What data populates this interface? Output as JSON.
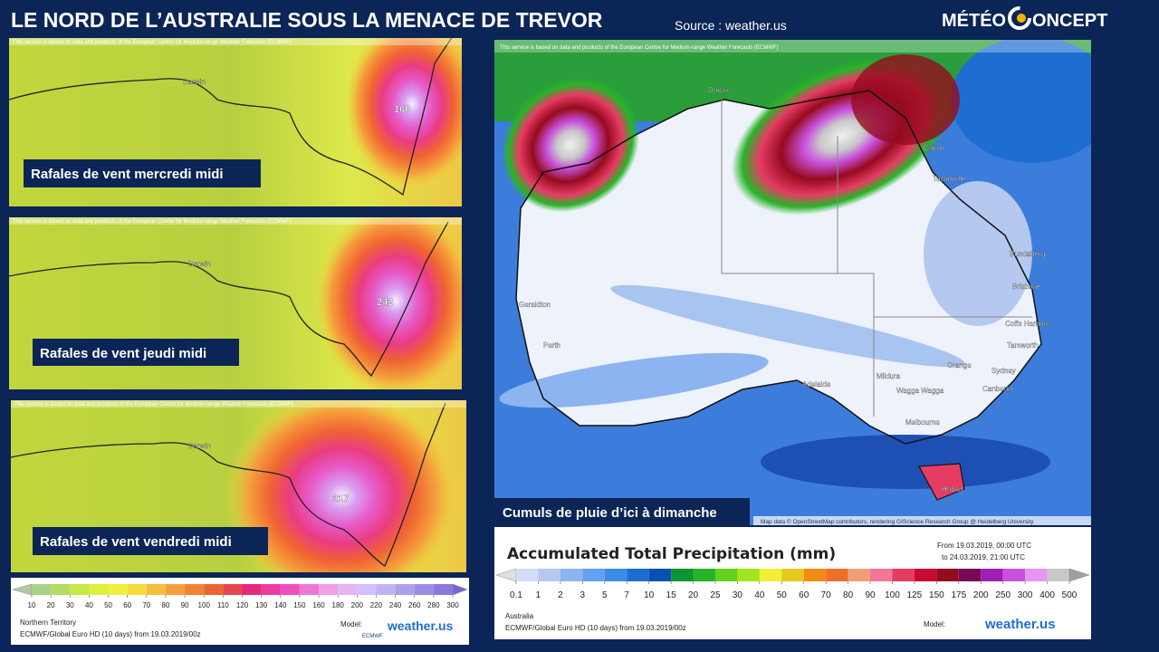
{
  "header": {
    "title": "LE NORD DE L’AUSTRALIE SOUS LA MENACE DE TREVOR",
    "source": "Source : weather.us",
    "logo_left": "MÉTÉO",
    "logo_right": "ONCEPT"
  },
  "wind_maps": [
    {
      "disclaimer": "This service is based on data and products of the European Centre for Medium-range Weather Forecasts (ECMWF)",
      "caption": "Rafales de vent mercredi midi",
      "city": "Darwin",
      "peak": 160
    },
    {
      "disclaimer": "This service is based on data and products of the European Centre for Medium-range Weather Forecasts (ECMWF)",
      "caption": "Rafales de vent jeudi midi",
      "city": "Darwin",
      "peak": 242
    },
    {
      "disclaimer": "This service is based on data and products of the European Centre for Medium-range Weather Forecasts (ECMWF)",
      "caption": "Rafales de vent vendredi midi",
      "city": "Darwin",
      "peak": 317
    }
  ],
  "wind_legend": {
    "labels": [
      10,
      20,
      30,
      40,
      50,
      60,
      70,
      80,
      90,
      100,
      110,
      120,
      130,
      140,
      150,
      160,
      180,
      200,
      220,
      240,
      260,
      280,
      300
    ],
    "colors": [
      "#b4c8a0",
      "#a8d28c",
      "#b4dc64",
      "#c8e646",
      "#dcf03c",
      "#f0f03c",
      "#f5dc3c",
      "#f5be3c",
      "#f5a03c",
      "#f08232",
      "#eb6432",
      "#e64650",
      "#e6287d",
      "#eb3ca0",
      "#f050be",
      "#f078d2",
      "#f0a0e6",
      "#e6b4f0",
      "#d2beff",
      "#beb4f5",
      "#aaa0eb",
      "#9b8ce6",
      "#8c78dc",
      "#7864d2"
    ],
    "region": "Northern Territory",
    "model_run": "ECMWF/Global Euro HD (10 days) from 19.03.2019/00z",
    "model_label": "Model:",
    "ecmwf": "ECMWF",
    "brand": "weather.us"
  },
  "precip_map": {
    "disclaimer": "This service is based on data and products of the European Centre for Medium-range Weather Forecasts (ECMWF)",
    "caption": "Cumuls de pluie d’ici à dimanche",
    "attribution": "Map data © OpenStreetMap contributors, rendering GIScience Research Group @ Heidelberg University",
    "cities": [
      "Darwin",
      "Cairns",
      "Townsville",
      "Bundaberg",
      "Brisbane",
      "Coffs Harbour",
      "Tamworth",
      "Sydney",
      "Orange",
      "Canberra",
      "Wagga Wagga",
      "Mildura",
      "Adelaide",
      "Melbourne",
      "Hobart",
      "Geraldton",
      "Perth"
    ]
  },
  "precip_legend": {
    "title": "Accumulated Total Precipitation (mm)",
    "from": "From 19.03.2019, 00:00 UTC",
    "to": "to 24.03.2019, 21:00 UTC",
    "labels": [
      0.1,
      1,
      2,
      3,
      5,
      7,
      10,
      15,
      20,
      25,
      30,
      40,
      50,
      60,
      70,
      80,
      90,
      100,
      125,
      150,
      175,
      200,
      250,
      300,
      400,
      500
    ],
    "colors": [
      "#e0e0e0",
      "#d4dcf6",
      "#b4c8f0",
      "#8cb4f0",
      "#64a0f0",
      "#3c8ce6",
      "#1e6ed2",
      "#0a50b4",
      "#0a9632",
      "#28b428",
      "#64d21e",
      "#a0e61e",
      "#f0f032",
      "#e6c81e",
      "#f08c14",
      "#f06e28",
      "#f0a078",
      "#f07896",
      "#e63c64",
      "#c80a32",
      "#960a1e",
      "#780a5a",
      "#a01eb4",
      "#c850dc",
      "#e696f0",
      "#c8c8c8",
      "#a0a0a0"
    ],
    "region": "Australia",
    "model_run": "ECMWF/Global Euro HD (10 days) from 19.03.2019/00z",
    "model_label": "Model:",
    "brand": "weather.us"
  }
}
